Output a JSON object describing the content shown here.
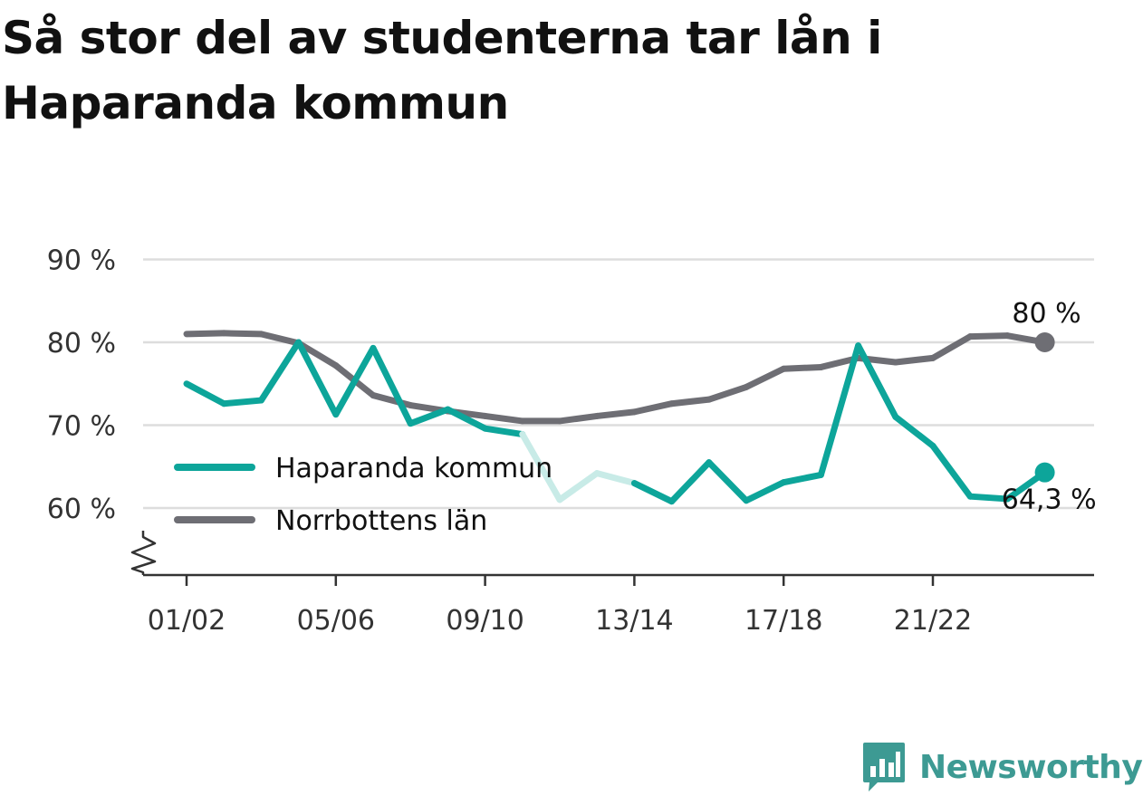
{
  "title": "Så stor del av studenterna tar lån i Haparanda kommun",
  "colors": {
    "haparanda": "#0da59a",
    "haparanda_faded": "#c8ebe7",
    "norrbotten": "#6e6e74",
    "grid": "#dddddd",
    "axis": "#333333",
    "logo": "#3d9a93"
  },
  "chart_data": {
    "type": "line",
    "x": [
      "01/02",
      "02/03",
      "03/04",
      "04/05",
      "05/06",
      "06/07",
      "07/08",
      "08/09",
      "09/10",
      "10/11",
      "11/12",
      "12/13",
      "13/14",
      "14/15",
      "15/16",
      "16/17",
      "17/18",
      "18/19",
      "19/20",
      "20/21",
      "21/22",
      "22/23",
      "23/24",
      "24/25"
    ],
    "x_tick_labels": [
      "01/02",
      "05/06",
      "09/10",
      "13/14",
      "17/18",
      "21/22"
    ],
    "ylim": [
      52,
      90
    ],
    "y_ticks": [
      60,
      70,
      80,
      90
    ],
    "y_tick_labels": [
      "60 %",
      "70 %",
      "80 %",
      "90 %"
    ],
    "axis_break": true,
    "grid": true,
    "legend_position": "bottom-left",
    "series": [
      {
        "name": "Haparanda kommun",
        "color": "#0da59a",
        "values": [
          75.0,
          72.6,
          73.0,
          80.0,
          71.3,
          79.3,
          70.2,
          71.9,
          69.6,
          68.9,
          61.0,
          64.2,
          63.0,
          60.8,
          65.5,
          60.9,
          63.1,
          64.0,
          79.6,
          71.0,
          67.5,
          61.4,
          61.1,
          64.3
        ],
        "faded_segments": [
          [
            9,
            10
          ],
          [
            10,
            11
          ],
          [
            11,
            12
          ]
        ],
        "end_label": "64,3 %"
      },
      {
        "name": "Norrbottens län",
        "color": "#6e6e74",
        "values": [
          81.0,
          81.1,
          81.0,
          79.9,
          77.2,
          73.6,
          72.4,
          71.7,
          71.1,
          70.5,
          70.5,
          71.1,
          71.6,
          72.6,
          73.1,
          74.6,
          76.8,
          77.0,
          78.1,
          77.6,
          78.1,
          80.7,
          80.8,
          80.0
        ],
        "end_label": "80 %"
      }
    ]
  },
  "logo": {
    "text": "Newsworthy",
    "icon": "bar-chart-badge-icon"
  }
}
